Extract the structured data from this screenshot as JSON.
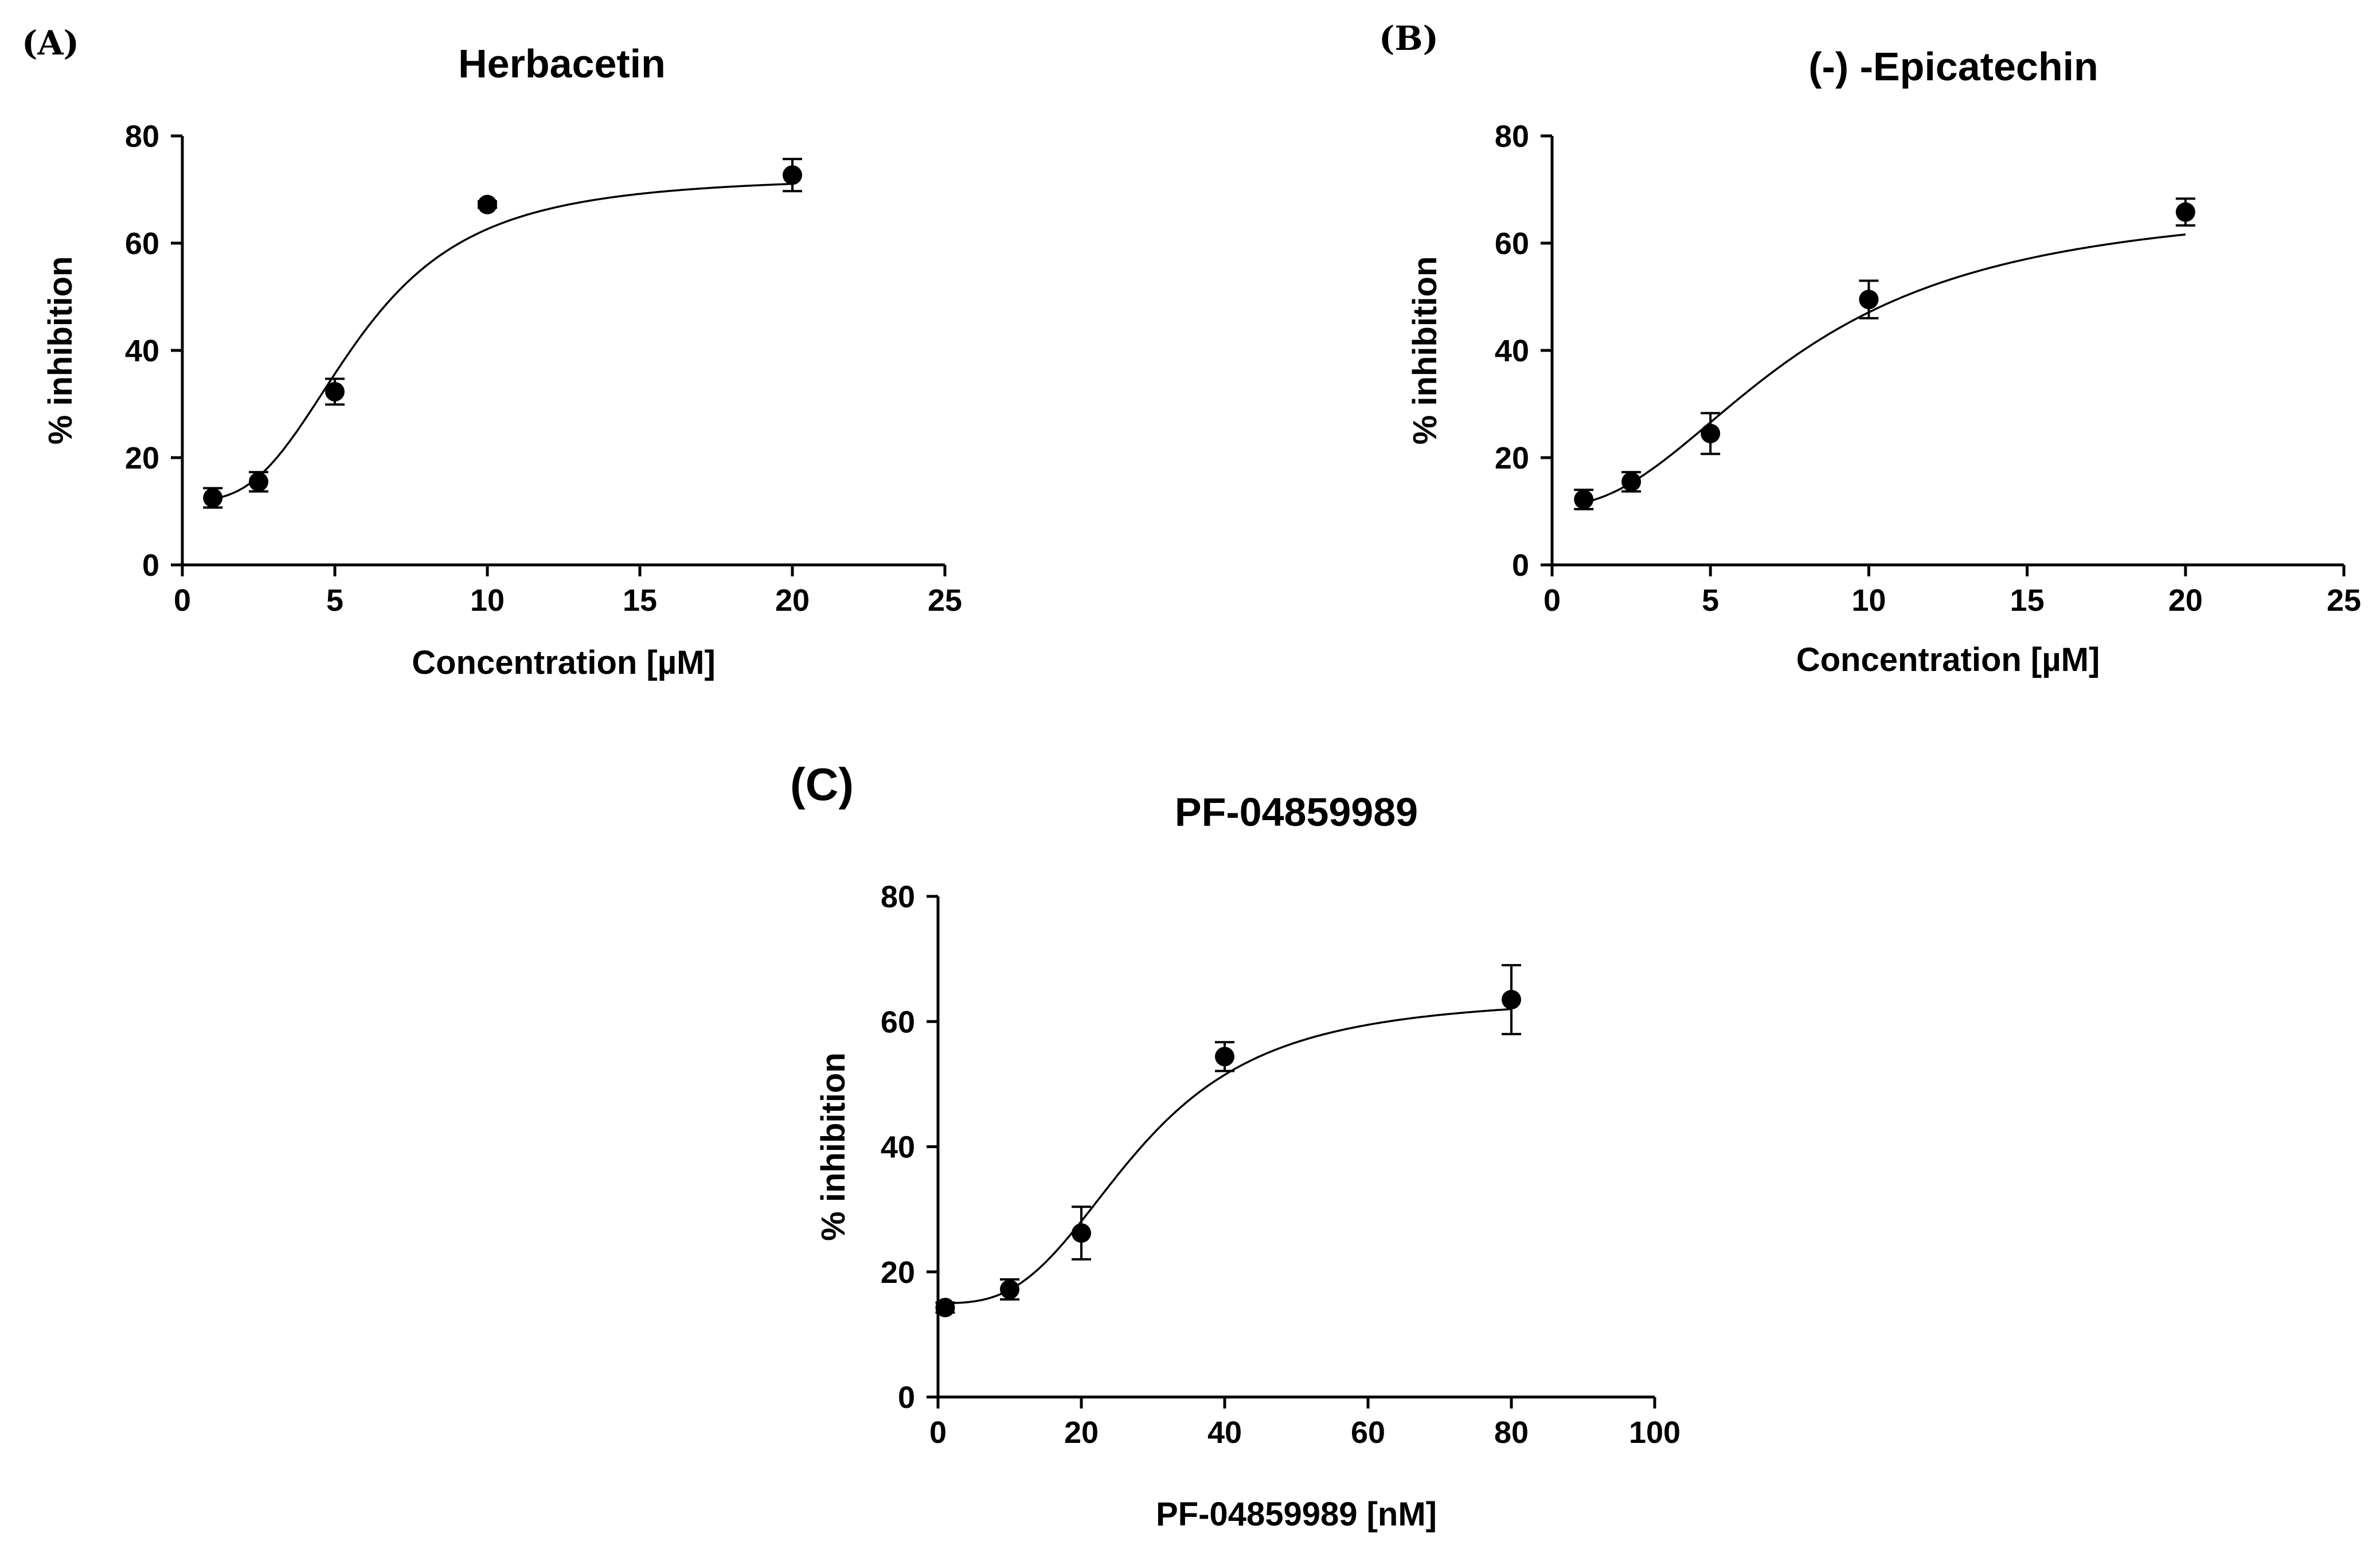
{
  "chart_data": [
    {
      "panel": "(A)",
      "type": "scatter",
      "title": "Herbacetin",
      "xlabel": "Concentration [µM]",
      "ylabel": "% inhibition",
      "xlim": [
        0,
        25
      ],
      "ylim": [
        0,
        80
      ],
      "xticks": [
        0,
        5,
        10,
        15,
        20,
        25
      ],
      "yticks": [
        0,
        20,
        40,
        60,
        80
      ],
      "grid": false,
      "series": [
        {
          "name": "Herbacetin",
          "x": [
            1,
            2.5,
            5,
            10,
            20
          ],
          "y": [
            12.5,
            15.5,
            32.3,
            67.2,
            72.7
          ],
          "error": [
            1.8,
            1.8,
            2.4,
            0.6,
            3.0
          ],
          "fit": {
            "model": "sigmoidal",
            "bottom": 12.0,
            "top": 72.5,
            "ec50": 5.8,
            "hill": 3.0
          }
        }
      ]
    },
    {
      "panel": "(B)",
      "type": "scatter",
      "title": "(-) -Epicatechin",
      "xlabel": "Concentration [µM]",
      "ylabel": "% inhibition",
      "xlim": [
        0,
        25
      ],
      "ylim": [
        0,
        80
      ],
      "xticks": [
        0,
        5,
        10,
        15,
        20,
        25
      ],
      "yticks": [
        0,
        20,
        40,
        60,
        80
      ],
      "grid": false,
      "series": [
        {
          "name": "(-) -Epicatechin",
          "x": [
            1,
            2.5,
            5,
            10,
            20
          ],
          "y": [
            12.2,
            15.5,
            24.5,
            49.5,
            65.8
          ],
          "error": [
            1.8,
            1.8,
            3.8,
            3.5,
            2.5
          ],
          "fit": {
            "model": "sigmoidal",
            "bottom": 11.0,
            "top": 68.0,
            "ec50": 7.8,
            "hill": 2.2
          }
        }
      ]
    },
    {
      "panel": "(C)",
      "type": "scatter",
      "title": "PF-04859989",
      "xlabel": "PF-04859989 [nM]",
      "ylabel": "% inhibition",
      "xlim": [
        0,
        100
      ],
      "ylim": [
        0,
        80
      ],
      "xticks": [
        0,
        20,
        40,
        60,
        80,
        100
      ],
      "yticks": [
        0,
        20,
        40,
        60,
        80
      ],
      "grid": false,
      "series": [
        {
          "name": "PF-04859989",
          "x": [
            1,
            10,
            20,
            40,
            80
          ],
          "y": [
            14.3,
            17.2,
            26.2,
            54.4,
            63.5
          ],
          "error": [
            0.8,
            1.6,
            4.2,
            2.3,
            5.5
          ],
          "fit": {
            "model": "sigmoidal",
            "bottom": 15.0,
            "top": 64.0,
            "ec50": 28.0,
            "hill": 3.0
          }
        }
      ]
    }
  ]
}
